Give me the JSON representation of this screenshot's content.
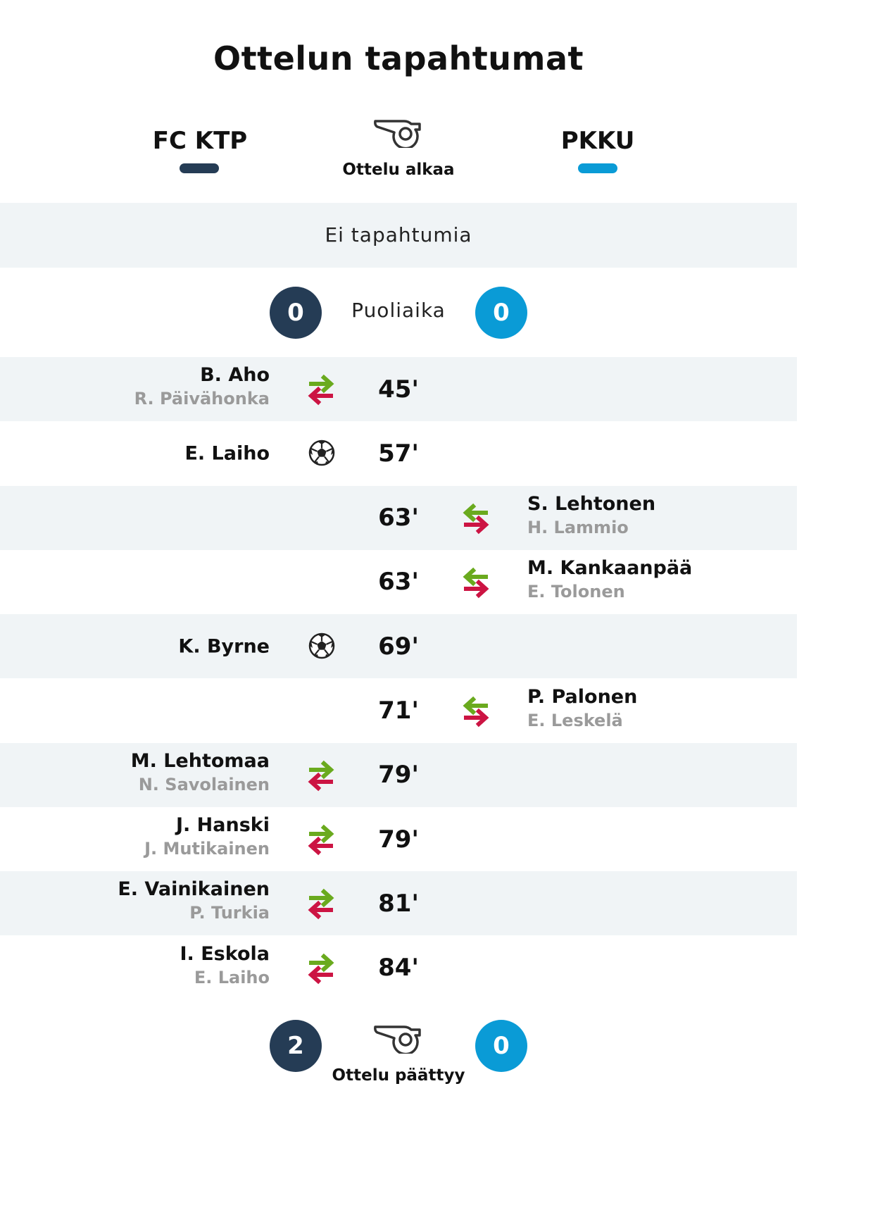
{
  "title": "Ottelun tapahtumat",
  "colors": {
    "home": "#253c55",
    "away": "#0a9bd6",
    "sub_in": "#6aaa1e",
    "sub_out": "#cc1443",
    "shade": "#f0f4f6"
  },
  "home_team": {
    "name": "FC KTP"
  },
  "away_team": {
    "name": "PKKU"
  },
  "kickoff": {
    "icon": "whistle-icon",
    "label": "Ottelu alkaa"
  },
  "first_half": {
    "message": "Ei tapahtumia"
  },
  "halftime": {
    "label": "Puoliaika",
    "home_score": "0",
    "away_score": "0"
  },
  "events": [
    {
      "minute": "45'",
      "side": "home",
      "type": "substitution",
      "player_in": "B. Aho",
      "player_out": "R. Päivähonka"
    },
    {
      "minute": "57'",
      "side": "home",
      "type": "goal",
      "player": "E. Laiho"
    },
    {
      "minute": "63'",
      "side": "away",
      "type": "substitution",
      "player_in": "S. Lehtonen",
      "player_out": "H. Lammio"
    },
    {
      "minute": "63'",
      "side": "away",
      "type": "substitution",
      "player_in": "M. Kankaanpää",
      "player_out": "E. Tolonen"
    },
    {
      "minute": "69'",
      "side": "home",
      "type": "goal",
      "player": "K. Byrne"
    },
    {
      "minute": "71'",
      "side": "away",
      "type": "substitution",
      "player_in": "P. Palonen",
      "player_out": "E. Leskelä"
    },
    {
      "minute": "79'",
      "side": "home",
      "type": "substitution",
      "player_in": "M. Lehtomaa",
      "player_out": "N. Savolainen"
    },
    {
      "minute": "79'",
      "side": "home",
      "type": "substitution",
      "player_in": "J. Hanski",
      "player_out": "J. Mutikainen"
    },
    {
      "minute": "81'",
      "side": "home",
      "type": "substitution",
      "player_in": "E. Vainikainen",
      "player_out": "P. Turkia"
    },
    {
      "minute": "84'",
      "side": "home",
      "type": "substitution",
      "player_in": "I. Eskola",
      "player_out": "E. Laiho"
    }
  ],
  "fulltime": {
    "icon": "whistle-icon",
    "label": "Ottelu päättyy",
    "home_score": "2",
    "away_score": "0"
  }
}
